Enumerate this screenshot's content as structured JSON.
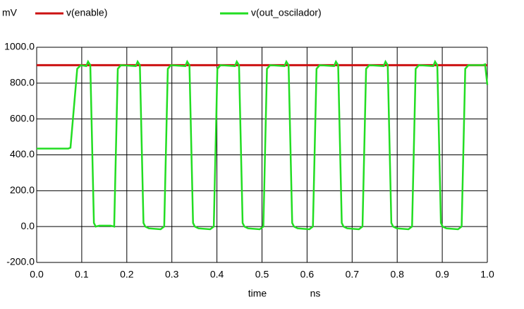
{
  "chart_data": {
    "type": "line",
    "ylabel": "mV",
    "xlabel": "time",
    "xunit": "ns",
    "xlim": [
      0,
      1
    ],
    "ylim": [
      -200,
      1000
    ],
    "xticks": [
      {
        "value": 0,
        "label": "0.0"
      },
      0.1,
      0.2,
      0.3,
      0.4,
      0.5,
      0.6,
      0.7,
      0.8,
      0.9,
      {
        "value": 1,
        "label": "1.0"
      }
    ],
    "yticks": [
      {
        "value": -200,
        "label": "-200.0"
      },
      {
        "value": 0,
        "label": "0.0"
      },
      {
        "value": 200,
        "label": "200.0"
      },
      {
        "value": 400,
        "label": "400.0"
      },
      {
        "value": 600,
        "label": "600.0"
      },
      {
        "value": 800,
        "label": "800.0"
      },
      {
        "value": 1000,
        "label": "1000.0"
      }
    ],
    "grid": true,
    "series": [
      {
        "name": "v(enable)",
        "color": "#cc1111",
        "x": [
          0,
          1
        ],
        "values": [
          900,
          900
        ]
      },
      {
        "name": "v(out_oscilador)",
        "color": "#22dd22",
        "x": [
          0,
          0.07,
          0.075,
          0.09,
          0.098,
          0.11,
          0.114,
          0.119,
          0.127,
          0.131,
          0.139,
          0.164,
          0.172,
          0.18,
          0.187,
          0.22,
          0.224,
          0.229,
          0.237,
          0.241,
          0.249,
          0.275,
          0.283,
          0.291,
          0.298,
          0.33,
          0.334,
          0.339,
          0.347,
          0.351,
          0.359,
          0.385,
          0.393,
          0.401,
          0.408,
          0.44,
          0.444,
          0.449,
          0.457,
          0.461,
          0.469,
          0.495,
          0.503,
          0.511,
          0.518,
          0.55,
          0.554,
          0.559,
          0.567,
          0.571,
          0.579,
          0.605,
          0.613,
          0.621,
          0.628,
          0.66,
          0.664,
          0.669,
          0.677,
          0.681,
          0.689,
          0.715,
          0.723,
          0.731,
          0.738,
          0.77,
          0.774,
          0.779,
          0.787,
          0.791,
          0.799,
          0.825,
          0.833,
          0.841,
          0.848,
          0.88,
          0.884,
          0.889,
          0.897,
          0.901,
          0.909,
          0.935,
          0.943,
          0.951,
          0.958,
          0.99,
          0.995,
          1
        ],
        "values": [
          435,
          435,
          440,
          880,
          900,
          895,
          920,
          900,
          20,
          0,
          5,
          5,
          0,
          880,
          900,
          895,
          920,
          900,
          20,
          0,
          -10,
          -15,
          0,
          880,
          900,
          895,
          920,
          900,
          20,
          0,
          -10,
          -15,
          0,
          880,
          900,
          895,
          920,
          900,
          20,
          0,
          -10,
          -15,
          0,
          880,
          900,
          895,
          920,
          900,
          20,
          0,
          -10,
          -15,
          0,
          880,
          900,
          895,
          920,
          900,
          20,
          0,
          -10,
          -15,
          0,
          880,
          900,
          895,
          920,
          900,
          20,
          0,
          -10,
          -15,
          0,
          880,
          900,
          895,
          920,
          900,
          20,
          0,
          -10,
          -15,
          0,
          880,
          900,
          900,
          905,
          790
        ]
      }
    ]
  }
}
